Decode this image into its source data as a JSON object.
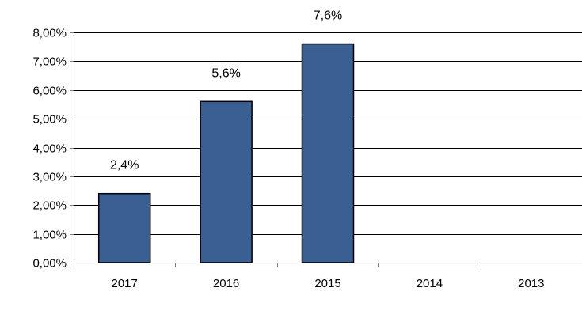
{
  "chart_data": {
    "type": "bar",
    "title": "",
    "xlabel": "",
    "ylabel": "",
    "categories": [
      "2017",
      "2016",
      "2015",
      "2014",
      "2013"
    ],
    "values": [
      2.4,
      5.6,
      7.6,
      null,
      null
    ],
    "data_labels": [
      "2,4%",
      "5,6%",
      "7,6%",
      "",
      ""
    ],
    "ylim": [
      0,
      8
    ],
    "yticks": [
      0,
      1,
      2,
      3,
      4,
      5,
      6,
      7,
      8
    ],
    "ytick_labels": [
      "0,00%",
      "1,00%",
      "2,00%",
      "3,00%",
      "4,00%",
      "5,00%",
      "6,00%",
      "7,00%",
      "8,00%"
    ],
    "grid": true,
    "legend": "none",
    "colors": {
      "bar": "#3a5f93",
      "bar_edge": "#000000",
      "grid": "#000000",
      "axis": "#808080"
    }
  }
}
